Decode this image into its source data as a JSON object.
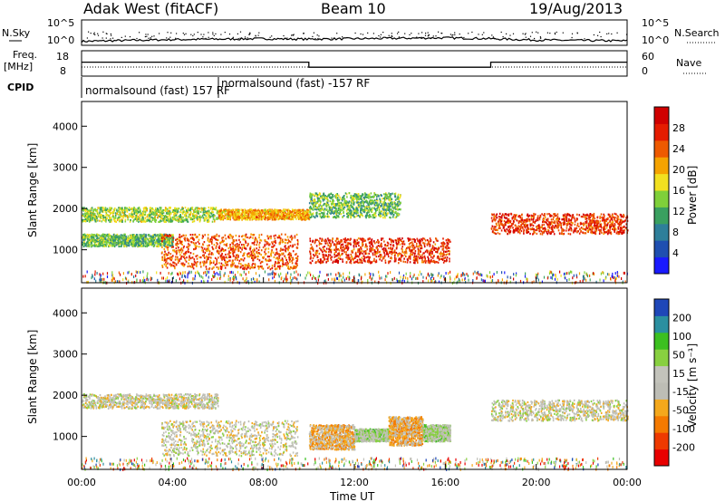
{
  "header": {
    "station": "Adak West (fitACF)",
    "beam": "Beam 10",
    "date": "19/Aug/2013"
  },
  "noise_panel": {
    "left_label": "N.Sky",
    "right_label": "N.Search",
    "left_ticks": [
      "10^5",
      "10^0"
    ],
    "right_ticks": [
      "10^5",
      "10^0"
    ]
  },
  "freq_panel": {
    "left_label_1": "Freq.",
    "left_label_2": "[MHz]",
    "right_label": "Nave",
    "left_ticks": [
      "18",
      "8"
    ],
    "right_ticks": [
      "60",
      "0"
    ]
  },
  "cpid_panel": {
    "label": "CPID",
    "segments": [
      {
        "text": "normalsound (fast) 157 RF",
        "start_hour": 0,
        "end_hour": 6
      },
      {
        "text": "normalsound (fast) -157 RF",
        "start_hour": 6,
        "end_hour": 24
      }
    ]
  },
  "power_panel": {
    "ylabel": "Slant Range [km]",
    "yticks": [
      "1000",
      "2000",
      "3000",
      "4000"
    ],
    "colorbar_label": "Power [dB]",
    "colorbar_ticks": [
      "28",
      "24",
      "20",
      "16",
      "12",
      "8",
      "4"
    ]
  },
  "velocity_panel": {
    "ylabel": "Slant Range [km]",
    "yticks": [
      "1000",
      "2000",
      "3000",
      "4000"
    ],
    "colorbar_label": "Velocity [m s⁻¹]",
    "colorbar_ticks": [
      "200",
      "100",
      "50",
      "15",
      "-15",
      "-50",
      "-100",
      "-200"
    ]
  },
  "xaxis": {
    "label": "Time UT",
    "ticks": [
      "00:00",
      "04:00",
      "08:00",
      "12:00",
      "16:00",
      "20:00",
      "00:00"
    ]
  },
  "colors": {
    "power_scale": [
      "#1a1aff",
      "#1f4fb0",
      "#2e7f9a",
      "#3aa060",
      "#7fd03a",
      "#f2e020",
      "#f5a300",
      "#ee5a00",
      "#e51c00",
      "#d00000"
    ],
    "velocity_scale": [
      "#e80000",
      "#ee3a00",
      "#f47a00",
      "#f4a81c",
      "#bdbdb5",
      "#c3c3bb",
      "#88d040",
      "#3cc020",
      "#2b8fa0",
      "#1f47b8"
    ],
    "ground_scatter": "#b8b8b0"
  },
  "chart_data": [
    {
      "type": "line",
      "title": "N.Sky / N.Search",
      "x": [
        0,
        2,
        4,
        6,
        8,
        10,
        12,
        14,
        16,
        18,
        20,
        22,
        24
      ],
      "y_sky_log": [
        0.5,
        0.7,
        0.9,
        1.0,
        1.1,
        1.0,
        1.1,
        1.2,
        1.3,
        1.1,
        0.8,
        0.7,
        0.6
      ],
      "xlabel": "Time UT",
      "ylim": [
        0,
        5
      ]
    },
    {
      "type": "line",
      "title": "Freq. [MHz] / Nave",
      "x": [
        0,
        10,
        10,
        18,
        18,
        24
      ],
      "freq": [
        13.5,
        13.5,
        11.5,
        11.5,
        13.5,
        13.5
      ],
      "ylim": [
        8,
        18
      ]
    },
    {
      "type": "heatmap",
      "title": "Power [dB]",
      "x_hours": [
        0,
        24
      ],
      "ylabel": "Slant Range [km]",
      "ylim": [
        200,
        4600
      ],
      "zlim": [
        0,
        30
      ],
      "bands": [
        {
          "t": [
            0,
            6
          ],
          "range_km": [
            1700,
            2050
          ],
          "level_db": 14
        },
        {
          "t": [
            0,
            4
          ],
          "range_km": [
            1100,
            1400
          ],
          "level_db": 12
        },
        {
          "t": [
            3.5,
            9.5
          ],
          "range_km": [
            550,
            1400
          ],
          "level_db": 24
        },
        {
          "t": [
            6,
            10
          ],
          "range_km": [
            1750,
            2000
          ],
          "level_db": 20
        },
        {
          "t": [
            10,
            16.2
          ],
          "range_km": [
            700,
            1300
          ],
          "level_db": 26
        },
        {
          "t": [
            10,
            14
          ],
          "range_km": [
            1800,
            2400
          ],
          "level_db": 12
        },
        {
          "t": [
            18,
            24
          ],
          "range_km": [
            1400,
            1900
          ],
          "level_db": 26
        }
      ]
    },
    {
      "type": "heatmap",
      "title": "Velocity [m s⁻¹]",
      "x_hours": [
        0,
        24
      ],
      "ylabel": "Slant Range [km]",
      "ylim": [
        200,
        4600
      ],
      "zlim": [
        -250,
        250
      ],
      "bands": [
        {
          "t": [
            0,
            6
          ],
          "range_km": [
            1700,
            2050
          ],
          "velocity": 0
        },
        {
          "t": [
            3.5,
            9.5
          ],
          "range_km": [
            550,
            1400
          ],
          "velocity": 0
        },
        {
          "t": [
            10,
            12
          ],
          "range_km": [
            700,
            1300
          ],
          "velocity": -60
        },
        {
          "t": [
            12,
            13.5
          ],
          "range_km": [
            900,
            1200
          ],
          "velocity": 40
        },
        {
          "t": [
            13.5,
            15
          ],
          "range_km": [
            800,
            1500
          ],
          "velocity": -70
        },
        {
          "t": [
            15,
            16.2
          ],
          "range_km": [
            900,
            1300
          ],
          "velocity": 40
        },
        {
          "t": [
            18,
            24
          ],
          "range_km": [
            1400,
            1900
          ],
          "velocity": 0
        }
      ]
    }
  ]
}
